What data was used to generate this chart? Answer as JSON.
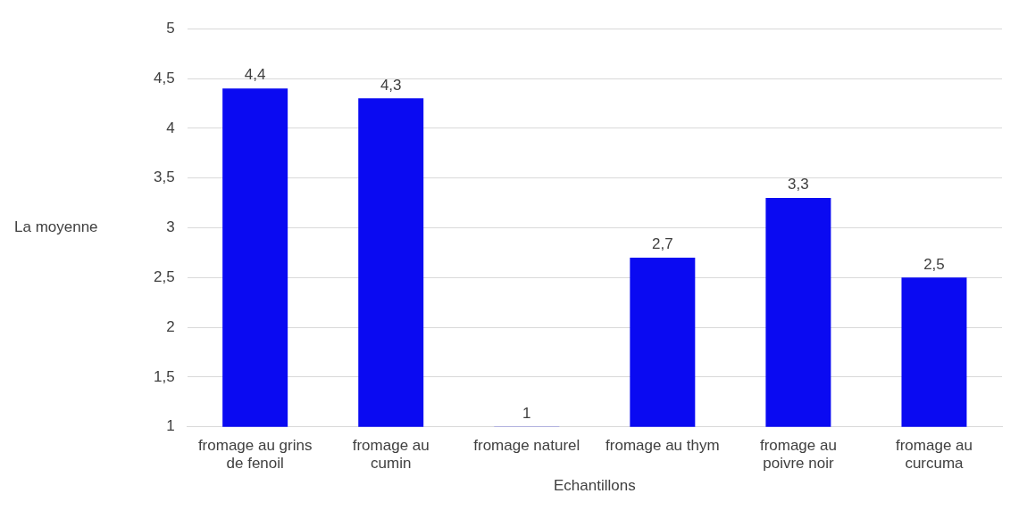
{
  "chart_data": {
    "type": "bar",
    "xlabel": "Echantillons",
    "ylabel": "La moyenne",
    "categories": [
      "fromage au grins de fenoil",
      "fromage au cumin",
      "fromage naturel",
      "fromage au thym",
      "fromage au poivre noir",
      "fromage au curcuma"
    ],
    "values": [
      4.4,
      4.3,
      1,
      2.7,
      3.3,
      2.5
    ],
    "value_labels": [
      "4,4",
      "4,3",
      "1",
      "2,7",
      "3,3",
      "2,5"
    ],
    "color": "#0a0af2",
    "ylim": [
      1,
      5
    ],
    "yticks": [
      1,
      {
        "value": 1.5,
        "label": "1,5"
      },
      2,
      {
        "value": 2.5,
        "label": "2,5"
      },
      3,
      {
        "value": 3.5,
        "label": "3,5"
      },
      4,
      {
        "value": 4.5,
        "label": "4,5"
      },
      5
    ],
    "grid": "y",
    "legend": false
  }
}
